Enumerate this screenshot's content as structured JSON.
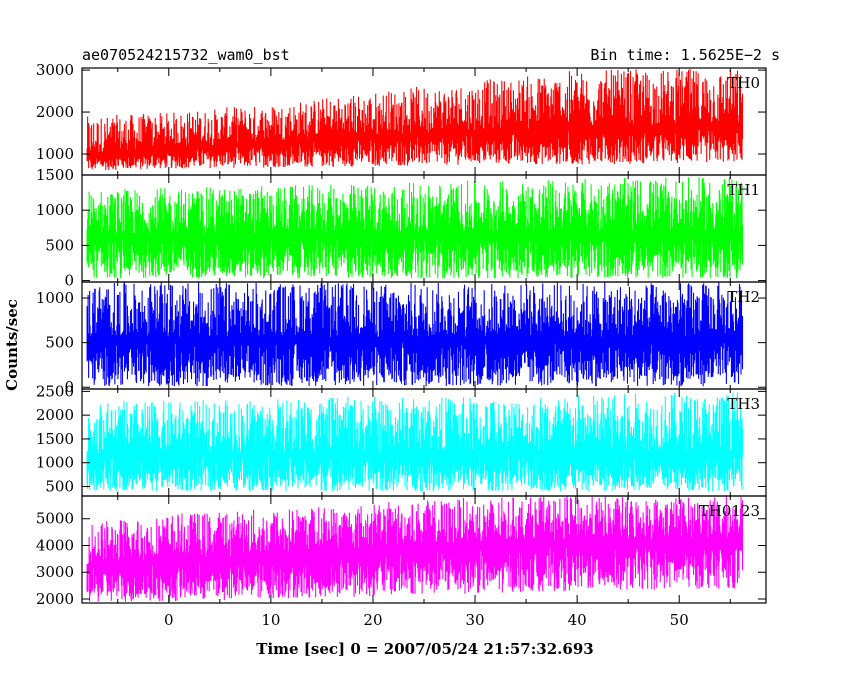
{
  "header": {
    "left": "ae070524215732_wam0_bst",
    "right": "Bin time: 1.5625E−2 s"
  },
  "chart_data": {
    "type": "line",
    "title": "ae070524215732_wam0_bst",
    "xlabel": "Time [sec] 0 = 2007/05/24 21:57:32.693",
    "ylabel": "Counts/sec",
    "xlim": [
      -8.5,
      58.5
    ],
    "xticks": [
      0,
      10,
      20,
      30,
      40,
      50
    ],
    "x_data_range": [
      -8.0,
      56.2
    ],
    "panels": [
      {
        "name": "TH0",
        "color": "#ff0000",
        "ylim": [
          500,
          3050
        ],
        "yticks": [
          1000,
          2000,
          3000
        ],
        "trend": {
          "x": [
            -8,
            0,
            10,
            20,
            30,
            40,
            56
          ],
          "y_low": [
            600,
            650,
            680,
            700,
            750,
            750,
            800
          ],
          "y_base": [
            1000,
            1150,
            1300,
            1450,
            1550,
            1650,
            1700
          ],
          "y_high": [
            1900,
            2000,
            2200,
            2500,
            2750,
            3000,
            3050
          ]
        }
      },
      {
        "name": "TH1",
        "color": "#00ff00",
        "ylim": [
          -20,
          1500
        ],
        "yticks": [
          0,
          500,
          1000,
          1500
        ],
        "trend": {
          "x": [
            -8,
            0,
            10,
            20,
            30,
            40,
            56
          ],
          "y_low": [
            30,
            30,
            30,
            30,
            30,
            30,
            30
          ],
          "y_base": [
            650,
            660,
            670,
            680,
            690,
            700,
            700
          ],
          "y_high": [
            1300,
            1320,
            1350,
            1380,
            1420,
            1450,
            1480
          ]
        }
      },
      {
        "name": "TH2",
        "color": "#0000ff",
        "ylim": [
          -20,
          1180
        ],
        "yticks": [
          0,
          500,
          1000
        ],
        "trend": {
          "x": [
            -8,
            0,
            10,
            20,
            30,
            40,
            56
          ],
          "y_low": [
            10,
            10,
            10,
            10,
            10,
            10,
            10
          ],
          "y_base": [
            550,
            550,
            560,
            560,
            560,
            560,
            560
          ],
          "y_high": [
            1180,
            1180,
            1180,
            1180,
            1180,
            1180,
            1180
          ]
        }
      },
      {
        "name": "TH3",
        "color": "#00ffff",
        "ylim": [
          300,
          2550
        ],
        "yticks": [
          500,
          1000,
          1500,
          2000,
          2500
        ],
        "trend": {
          "x": [
            -8,
            0,
            10,
            20,
            30,
            40,
            56
          ],
          "y_low": [
            400,
            400,
            400,
            400,
            400,
            400,
            400
          ],
          "y_base": [
            1200,
            1200,
            1220,
            1220,
            1230,
            1230,
            1250
          ],
          "y_high": [
            2300,
            2300,
            2350,
            2400,
            2400,
            2450,
            2500
          ]
        }
      },
      {
        "name": "TH0123",
        "color": "#ff00ff",
        "ylim": [
          1850,
          5850
        ],
        "yticks": [
          2000,
          3000,
          4000,
          5000
        ],
        "trend": {
          "x": [
            -8,
            0,
            10,
            20,
            30,
            40,
            56
          ],
          "y_low": [
            1850,
            1900,
            2000,
            2100,
            2200,
            2300,
            2400
          ],
          "y_base": [
            3300,
            3500,
            3700,
            3950,
            4100,
            4200,
            4300
          ],
          "y_high": [
            4900,
            5200,
            5400,
            5600,
            5800,
            5850,
            5850
          ]
        }
      }
    ]
  }
}
